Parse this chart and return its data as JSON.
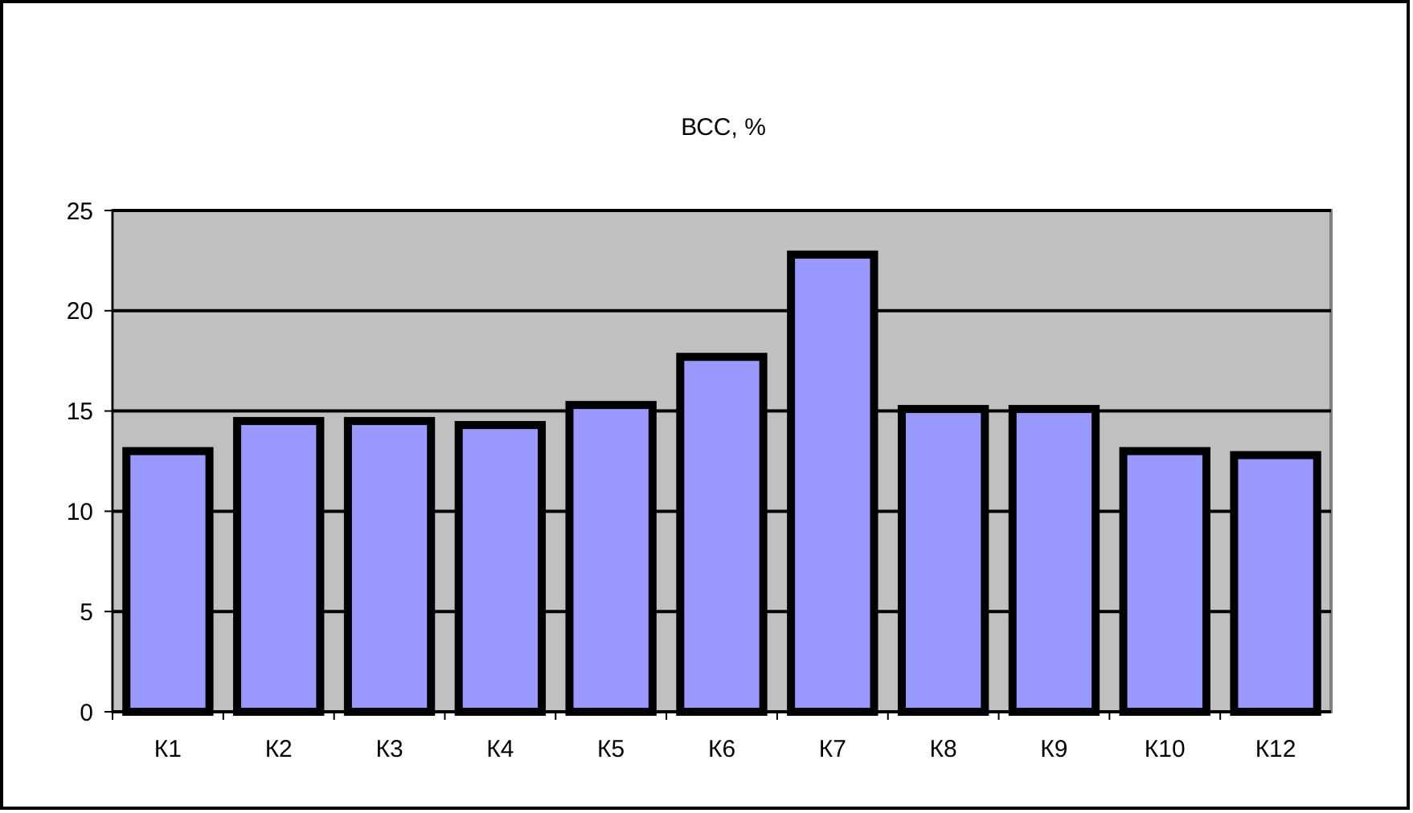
{
  "chart_data": {
    "type": "bar",
    "title": "ВСС, %",
    "categories": [
      "К1",
      "К2",
      "К3",
      "К4",
      "К5",
      "К6",
      "К7",
      "К8",
      "К9",
      "К10",
      "К12"
    ],
    "values": [
      13.0,
      14.5,
      14.5,
      14.3,
      15.3,
      17.7,
      22.8,
      15.1,
      15.1,
      13.0,
      12.8
    ],
    "color": "#9999ff",
    "ylim": [
      0,
      25
    ],
    "yticks": [
      0,
      5,
      10,
      15,
      20,
      25
    ],
    "grid": "y"
  }
}
